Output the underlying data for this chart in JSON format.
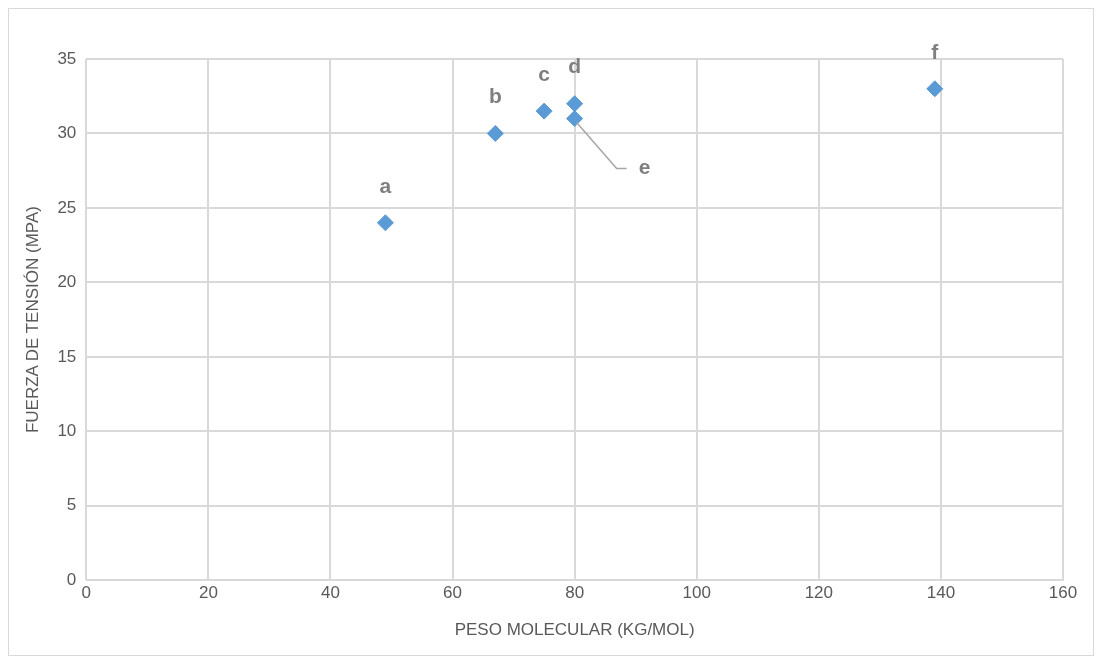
{
  "chart_data": {
    "type": "scatter",
    "xlabel": "PESO MOLECULAR (KG/MOL)",
    "ylabel": "FUERZA DE TENSIÓN (MPA)",
    "series": [
      {
        "color": "#5b9bd5",
        "x": [
          49,
          67,
          75,
          80,
          80,
          139
        ],
        "values": [
          24,
          30,
          31.5,
          32,
          31,
          33
        ]
      }
    ],
    "annotations": [
      {
        "text": "a",
        "x": 49,
        "y": 24
      },
      {
        "text": "b",
        "x": 67,
        "y": 30
      },
      {
        "text": "c",
        "x": 75,
        "y": 31.5
      },
      {
        "text": "d",
        "x": 80,
        "y": 32
      },
      {
        "text": "e",
        "x": 80,
        "y": 31
      },
      {
        "text": "f",
        "x": 139,
        "y": 33
      }
    ],
    "xlim": [
      0,
      160
    ],
    "xticks": [
      0,
      20,
      40,
      60,
      80,
      100,
      120,
      140,
      160
    ],
    "ylim": [
      0,
      35
    ],
    "yticks": [
      0,
      5,
      10,
      15,
      20,
      25,
      30,
      35
    ],
    "grid": true,
    "legend": false,
    "marker": "diamond"
  }
}
